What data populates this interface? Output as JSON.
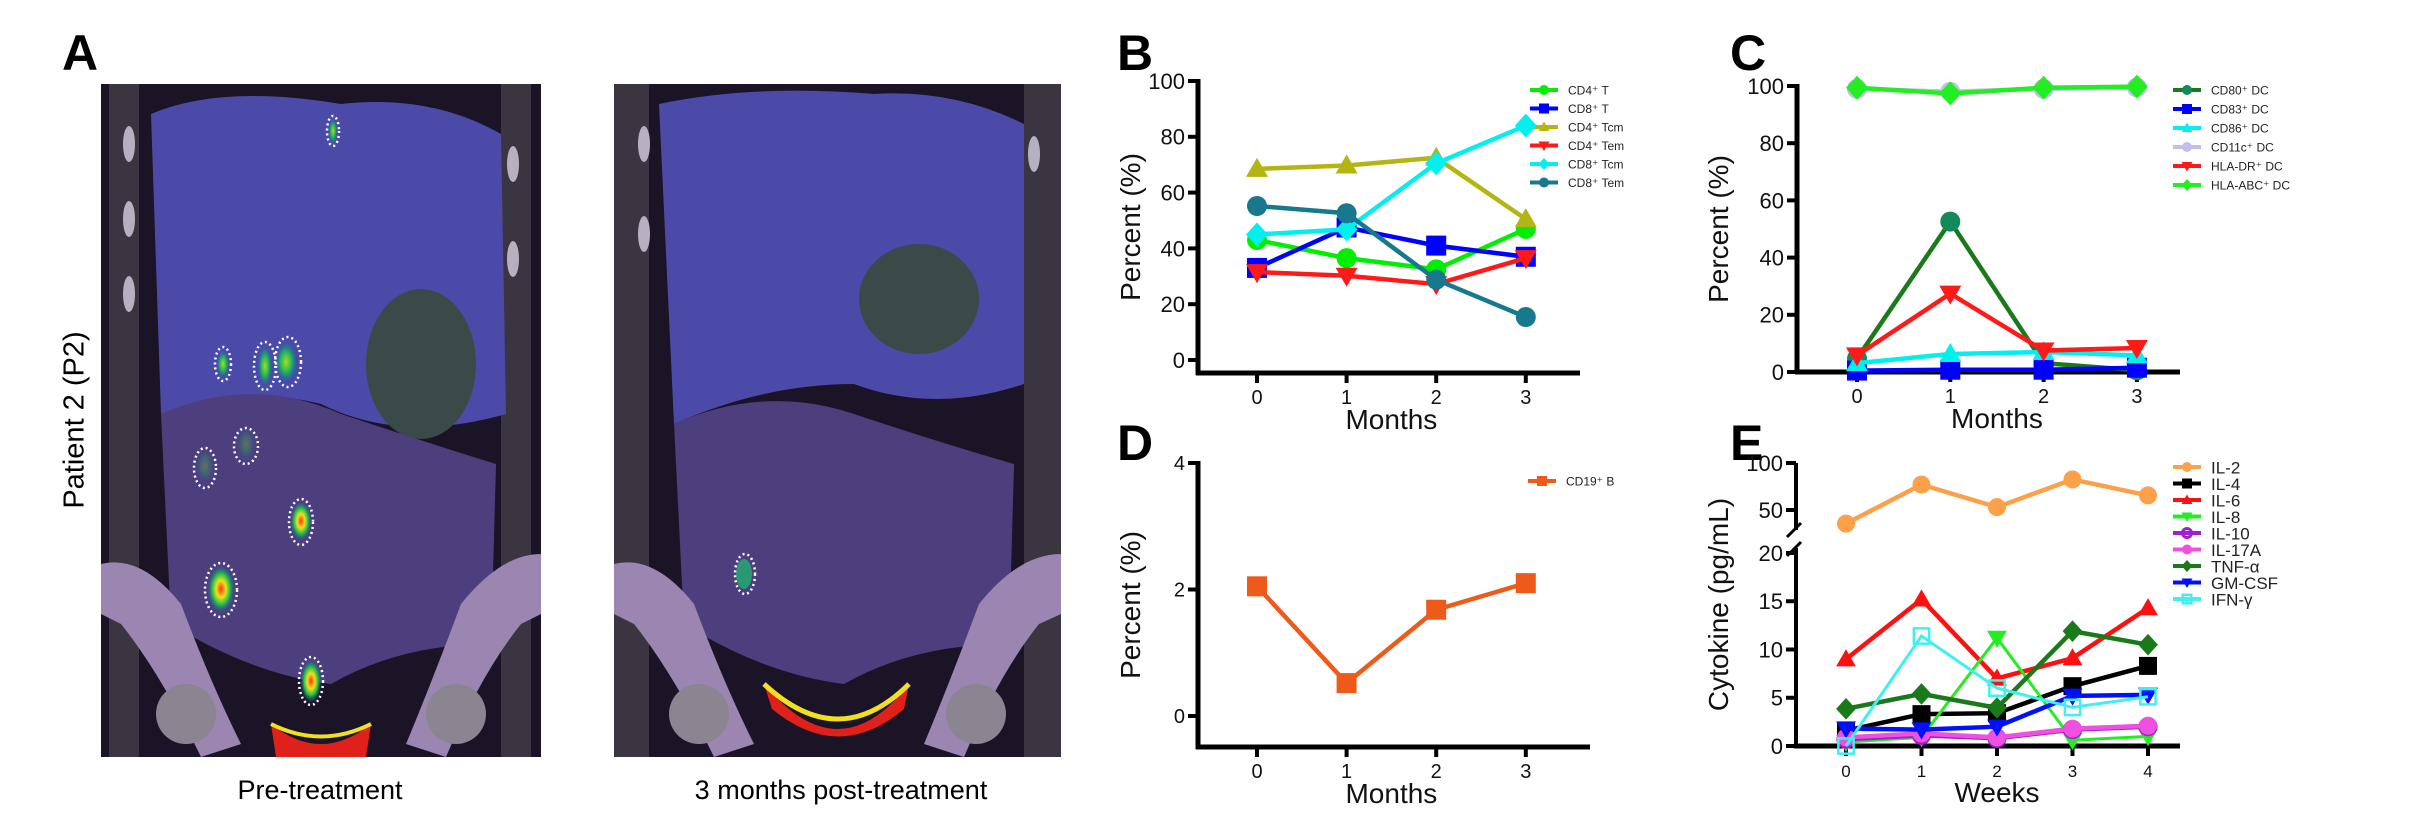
{
  "panels": {
    "A": {
      "label": "A",
      "ylabel": "Patient 2 (P2)",
      "images": [
        {
          "caption": "Pre-treatment",
          "lesion_count": 9
        },
        {
          "caption": "3 months post-treatment",
          "lesion_count": 1
        }
      ]
    },
    "B": {
      "label": "B"
    },
    "C": {
      "label": "C"
    },
    "D": {
      "label": "D"
    },
    "E": {
      "label": "E"
    }
  },
  "chart_data": [
    {
      "id": "B",
      "type": "line",
      "title": "",
      "xlabel": "Months",
      "ylabel": "Percent (%)",
      "x": [
        0,
        1,
        2,
        3
      ],
      "xticks": [
        "0",
        "1",
        "2",
        "3"
      ],
      "ylim": [
        0,
        100
      ],
      "yticks": [
        0,
        20,
        40,
        60,
        80,
        100
      ],
      "grid": false,
      "legend": "right",
      "series": [
        {
          "name": "CD4⁺ T",
          "color": "#00ee00",
          "marker": "circle",
          "values": [
            43,
            36.5,
            32.5,
            47
          ]
        },
        {
          "name": "CD8⁺ T",
          "color": "#0000ff",
          "marker": "square",
          "values": [
            33,
            47.5,
            41,
            37
          ]
        },
        {
          "name": "CD4⁺ Tcm",
          "color": "#b5b512",
          "marker": "triangle-up",
          "values": [
            68.5,
            69.7,
            72.5,
            50.5
          ]
        },
        {
          "name": "CD4⁺ Tem",
          "color": "#ff1a1a",
          "marker": "triangle-down",
          "values": [
            31.5,
            30.2,
            27.2,
            36.5
          ]
        },
        {
          "name": "CD8⁺ Tcm",
          "color": "#00f0f0",
          "marker": "diamond",
          "values": [
            45,
            46.8,
            70.5,
            84
          ]
        },
        {
          "name": "CD8⁺ Tem",
          "color": "#17788e",
          "marker": "circle",
          "values": [
            55.2,
            52.6,
            28.8,
            15.4
          ]
        }
      ]
    },
    {
      "id": "C",
      "type": "line",
      "title": "",
      "xlabel": "Months",
      "ylabel": "Percent (%)",
      "x": [
        0,
        1,
        2,
        3
      ],
      "xticks": [
        "0",
        "1",
        "2",
        "3"
      ],
      "ylim": [
        0,
        100
      ],
      "yticks": [
        0,
        20,
        40,
        60,
        80,
        100
      ],
      "grid": false,
      "legend": "right",
      "series": [
        {
          "name": "CD80⁺ DC",
          "color": "#138a5a",
          "line_color": "#1a7a1a",
          "marker": "circle",
          "values": [
            4.7,
            52.6,
            3.1,
            0.6
          ]
        },
        {
          "name": "CD83⁺ DC",
          "color": "#0000ff",
          "marker": "square",
          "values": [
            0.5,
            0.8,
            0.8,
            1.5
          ]
        },
        {
          "name": "CD86⁺ DC",
          "color": "#00f0f0",
          "marker": "triangle-up",
          "values": [
            3.1,
            6.3,
            7,
            5.8
          ]
        },
        {
          "name": "CD11c⁺ DC",
          "color": "#c0c0ee",
          "marker": "circle",
          "values": [
            99,
            98,
            99,
            99.5
          ]
        },
        {
          "name": "HLA-DR⁺ DC",
          "color": "#ff1a1a",
          "marker": "triangle-down",
          "values": [
            5.8,
            27.4,
            7.5,
            8.4
          ]
        },
        {
          "name": "HLA-ABC⁺ DC",
          "color": "#22ee22",
          "marker": "diamond",
          "values": [
            99.4,
            97.4,
            99.4,
            99.8
          ]
        }
      ]
    },
    {
      "id": "D",
      "type": "line",
      "title": "",
      "xlabel": "Months",
      "ylabel": "Percent (%)",
      "x": [
        0,
        1,
        2,
        3
      ],
      "xticks": [
        "0",
        "1",
        "2",
        "3"
      ],
      "ylim": [
        -0.5,
        4
      ],
      "yticks": [
        0,
        2,
        4
      ],
      "grid": false,
      "legend": "top-right",
      "series": [
        {
          "name": "CD19⁺ B",
          "color": "#ee5a1a",
          "marker": "square",
          "values": [
            2.05,
            0.52,
            1.68,
            2.1
          ]
        }
      ]
    },
    {
      "id": "E",
      "type": "line",
      "title": "",
      "xlabel": "Weeks",
      "ylabel": "Cytokine (pg/mL)",
      "x": [
        0,
        1,
        2,
        3,
        4
      ],
      "xticks": [
        "0",
        "1",
        "2",
        "3",
        "4"
      ],
      "ylim": [
        0,
        100
      ],
      "y_axis_break": [
        20,
        40
      ],
      "yticks": [
        0,
        5,
        10,
        15,
        20,
        50,
        100
      ],
      "grid": false,
      "legend": "right",
      "series": [
        {
          "name": "IL-2",
          "color": "#fca04a",
          "marker": "circle",
          "values": [
            35.5,
            77,
            53,
            82.5,
            65.5
          ]
        },
        {
          "name": "IL-4",
          "color": "#000000",
          "marker": "square",
          "values": [
            1.6,
            3.3,
            3.4,
            6.2,
            8.3
          ]
        },
        {
          "name": "IL-6",
          "color": "#ff1010",
          "marker": "triangle-up",
          "values": [
            9.0,
            15.2,
            7.0,
            9.1,
            14.3
          ]
        },
        {
          "name": "IL-8",
          "color": "#22ee22",
          "marker": "triangle-down",
          "values": [
            0.4,
            0.9,
            11.2,
            0.6,
            1.0
          ]
        },
        {
          "name": "IL-10",
          "color": "#a020d0",
          "marker": "circle-open",
          "values": [
            0.7,
            1.1,
            0.8,
            1.7,
            2.0
          ]
        },
        {
          "name": "IL-17A",
          "color": "#f050e0",
          "marker": "circle",
          "values": [
            0.9,
            1.3,
            0.9,
            1.8,
            2.1
          ]
        },
        {
          "name": "TNF-α",
          "color": "#1a7a1a",
          "marker": "diamond",
          "values": [
            3.85,
            5.4,
            3.95,
            11.9,
            10.5
          ]
        },
        {
          "name": "GM-CSF",
          "color": "#0010ff",
          "marker": "triangle-down",
          "values": [
            1.8,
            1.7,
            2.0,
            5.2,
            5.3
          ]
        },
        {
          "name": "IFN-γ",
          "color": "#40f0f0",
          "marker": "square-open",
          "values": [
            0.0,
            11.4,
            6.0,
            4.0,
            5.1
          ]
        }
      ]
    }
  ]
}
